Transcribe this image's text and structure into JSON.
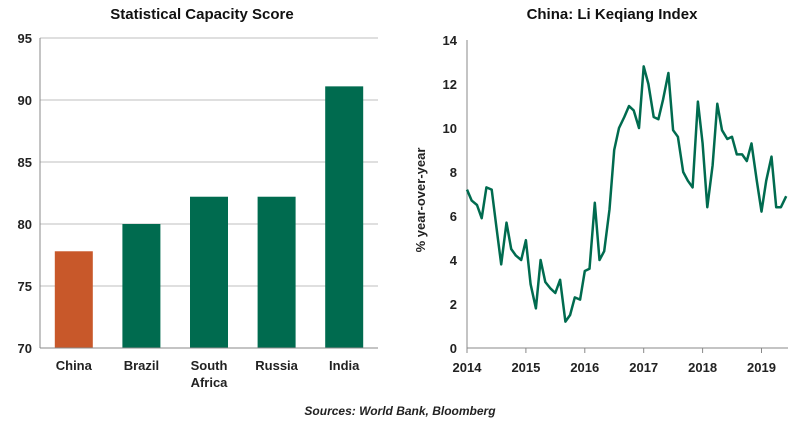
{
  "colors": {
    "green": "#006B4F",
    "orange": "#C8582A",
    "axis": "#888888",
    "grid": "#bfbfbf"
  },
  "source": "Sources: World Bank, Bloomberg",
  "chart_data": [
    {
      "type": "bar",
      "title": "Statistical Capacity Score",
      "categories": [
        "China",
        "Brazil",
        "South Africa",
        "Russia",
        "India"
      ],
      "category_lines": [
        [
          "China"
        ],
        [
          "Brazil"
        ],
        [
          "South",
          "Africa"
        ],
        [
          "Russia"
        ],
        [
          "India"
        ]
      ],
      "values": [
        77.8,
        80.0,
        82.2,
        82.2,
        91.1
      ],
      "bar_colors": [
        "#C8582A",
        "#006B4F",
        "#006B4F",
        "#006B4F",
        "#006B4F"
      ],
      "ylim": [
        70,
        95
      ],
      "yticks": [
        70,
        75,
        80,
        85,
        90,
        95
      ],
      "grid": true
    },
    {
      "type": "line",
      "title": "China: Li Keqiang Index",
      "ylabel": "% year-over-year",
      "xlim": [
        2014.0,
        2019.45
      ],
      "ylim": [
        0,
        14
      ],
      "yticks": [
        0,
        2,
        4,
        6,
        8,
        10,
        12,
        14
      ],
      "xticks": [
        2014,
        2015,
        2016,
        2017,
        2018,
        2019
      ],
      "grid": false,
      "series": [
        {
          "x": [
            2014.0,
            2014.08,
            2014.17,
            2014.25,
            2014.33,
            2014.42,
            2014.5,
            2014.58,
            2014.67,
            2014.75,
            2014.83,
            2014.92,
            2015.0,
            2015.08,
            2015.17,
            2015.25,
            2015.33,
            2015.42,
            2015.5,
            2015.58,
            2015.67,
            2015.75,
            2015.83,
            2015.92,
            2016.0,
            2016.08,
            2016.17,
            2016.25,
            2016.33,
            2016.42,
            2016.5,
            2016.58,
            2016.67,
            2016.75,
            2016.83,
            2016.92,
            2017.0,
            2017.08,
            2017.17,
            2017.25,
            2017.33,
            2017.42,
            2017.5,
            2017.58,
            2017.67,
            2017.75,
            2017.83,
            2017.92,
            2018.0,
            2018.08,
            2018.17,
            2018.25,
            2018.33,
            2018.42,
            2018.5,
            2018.58,
            2018.67,
            2018.75,
            2018.83,
            2018.92,
            2019.0,
            2019.08,
            2019.17,
            2019.25,
            2019.33,
            2019.42
          ],
          "y": [
            7.2,
            6.7,
            6.5,
            5.9,
            7.3,
            7.2,
            5.5,
            3.8,
            5.7,
            4.5,
            4.2,
            4.0,
            4.9,
            2.9,
            1.8,
            4.0,
            3.0,
            2.7,
            2.5,
            3.1,
            1.2,
            1.5,
            2.3,
            2.2,
            3.5,
            3.6,
            6.6,
            4.0,
            4.4,
            6.3,
            9.0,
            10.0,
            10.5,
            11.0,
            10.8,
            10.0,
            12.8,
            12.0,
            10.5,
            10.4,
            11.3,
            12.5,
            9.9,
            9.6,
            8.0,
            7.6,
            7.3,
            11.2,
            9.3,
            6.4,
            8.3,
            11.1,
            9.9,
            9.5,
            9.6,
            8.8,
            8.8,
            8.5,
            9.3,
            7.6,
            6.2,
            7.6,
            8.7,
            6.4,
            6.4,
            6.9
          ]
        }
      ]
    }
  ]
}
